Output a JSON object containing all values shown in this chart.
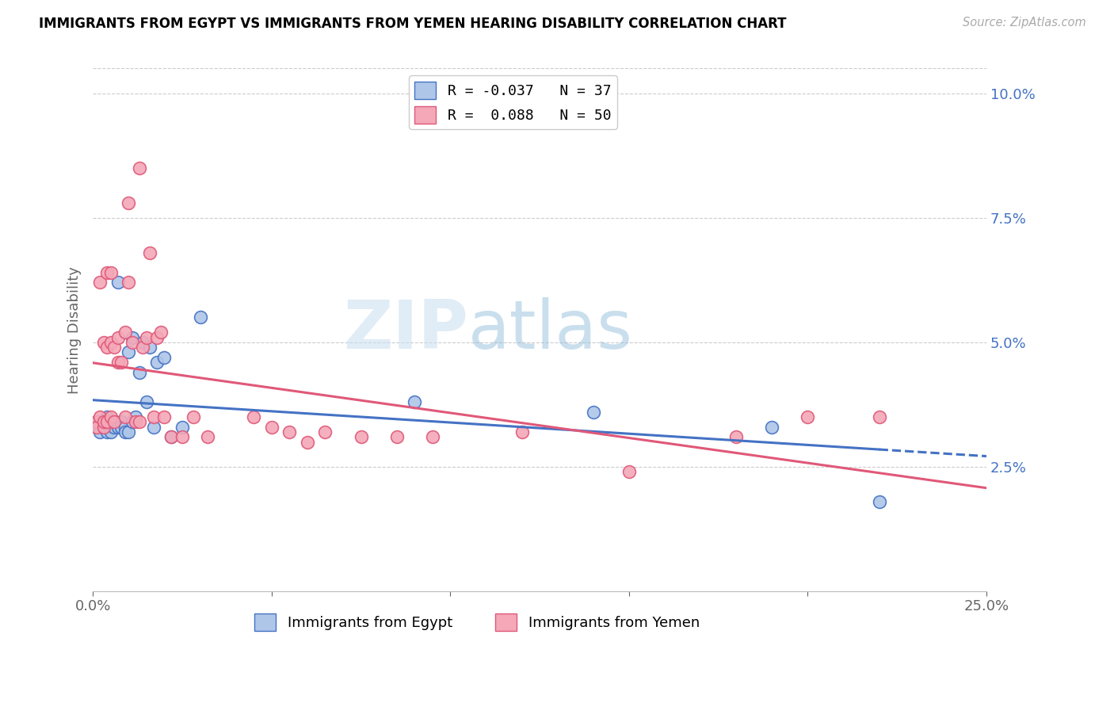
{
  "title": "IMMIGRANTS FROM EGYPT VS IMMIGRANTS FROM YEMEN HEARING DISABILITY CORRELATION CHART",
  "source": "Source: ZipAtlas.com",
  "ylabel": "Hearing Disability",
  "xlim": [
    0.0,
    0.25
  ],
  "ylim": [
    0.0,
    0.105
  ],
  "yticks_right": [
    0.025,
    0.05,
    0.075,
    0.1
  ],
  "ytick_labels_right": [
    "2.5%",
    "5.0%",
    "7.5%",
    "10.0%"
  ],
  "legend1_label": "R = -0.037   N = 37",
  "legend2_label": "R =  0.088   N = 50",
  "legend_label1_bottom": "Immigrants from Egypt",
  "legend_label2_bottom": "Immigrants from Yemen",
  "color_egypt": "#aec6e8",
  "color_yemen": "#f4a8b8",
  "color_egypt_line": "#4472c4",
  "color_yemen_line": "#e05878",
  "watermark_zip": "ZIP",
  "watermark_atlas": "atlas",
  "egypt_x": [
    0.001,
    0.002,
    0.002,
    0.003,
    0.003,
    0.004,
    0.004,
    0.005,
    0.005,
    0.005,
    0.006,
    0.006,
    0.007,
    0.007,
    0.008,
    0.008,
    0.009,
    0.009,
    0.01,
    0.01,
    0.011,
    0.011,
    0.012,
    0.013,
    0.014,
    0.015,
    0.016,
    0.017,
    0.018,
    0.02,
    0.022,
    0.025,
    0.03,
    0.09,
    0.14,
    0.19,
    0.22
  ],
  "egypt_y": [
    0.034,
    0.033,
    0.032,
    0.034,
    0.033,
    0.035,
    0.032,
    0.034,
    0.033,
    0.032,
    0.034,
    0.033,
    0.062,
    0.033,
    0.034,
    0.033,
    0.033,
    0.032,
    0.032,
    0.048,
    0.034,
    0.051,
    0.035,
    0.044,
    0.05,
    0.038,
    0.049,
    0.033,
    0.046,
    0.047,
    0.031,
    0.033,
    0.055,
    0.038,
    0.036,
    0.033,
    0.018
  ],
  "yemen_x": [
    0.001,
    0.001,
    0.002,
    0.002,
    0.003,
    0.003,
    0.003,
    0.004,
    0.004,
    0.004,
    0.005,
    0.005,
    0.005,
    0.006,
    0.006,
    0.007,
    0.007,
    0.008,
    0.009,
    0.009,
    0.01,
    0.01,
    0.011,
    0.012,
    0.013,
    0.013,
    0.014,
    0.015,
    0.016,
    0.017,
    0.018,
    0.019,
    0.02,
    0.022,
    0.025,
    0.028,
    0.032,
    0.045,
    0.05,
    0.055,
    0.06,
    0.065,
    0.075,
    0.085,
    0.095,
    0.12,
    0.15,
    0.18,
    0.2,
    0.22
  ],
  "yemen_y": [
    0.034,
    0.033,
    0.035,
    0.062,
    0.033,
    0.034,
    0.05,
    0.034,
    0.049,
    0.064,
    0.035,
    0.05,
    0.064,
    0.049,
    0.034,
    0.051,
    0.046,
    0.046,
    0.052,
    0.035,
    0.062,
    0.078,
    0.05,
    0.034,
    0.085,
    0.034,
    0.049,
    0.051,
    0.068,
    0.035,
    0.051,
    0.052,
    0.035,
    0.031,
    0.031,
    0.035,
    0.031,
    0.035,
    0.033,
    0.032,
    0.03,
    0.032,
    0.031,
    0.031,
    0.031,
    0.032,
    0.024,
    0.031,
    0.035,
    0.035
  ]
}
